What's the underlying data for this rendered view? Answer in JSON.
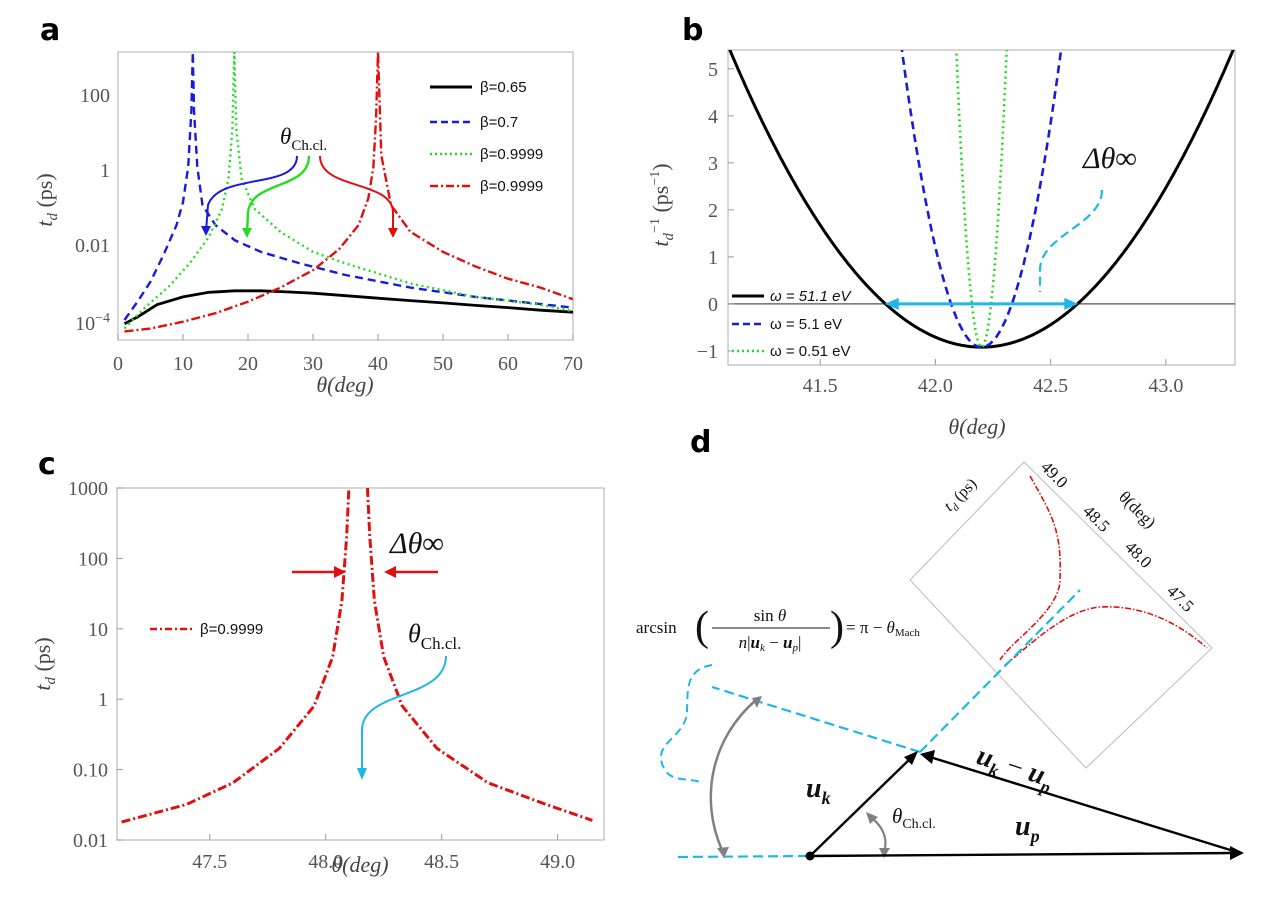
{
  "panels": {
    "a": {
      "letter": "a"
    },
    "b": {
      "letter": "b"
    },
    "c": {
      "letter": "c"
    },
    "d": {
      "letter": "d"
    }
  },
  "colors": {
    "black": "#000000",
    "blue": "#1a1adb",
    "green": "#22dd22",
    "red": "#e01010",
    "cyan": "#1fb6e8",
    "gray": "#808080"
  },
  "chart_data": [
    {
      "id": "a",
      "type": "line",
      "xlabel": "θ(deg)",
      "ylabel": "t_d (ps)",
      "yscale": "log",
      "xlim": [
        0,
        70
      ],
      "ylim": [
        3e-05,
        1000
      ],
      "xticks": [
        "0",
        "10",
        "20",
        "30",
        "40",
        "50",
        "60",
        "70"
      ],
      "yticks": [
        "10^-4",
        "0.01",
        "1",
        "100"
      ],
      "series": [
        {
          "name": "β=0.65",
          "style": "solid",
          "color": "#000000",
          "x": [
            1,
            3,
            6,
            10,
            14,
            18,
            22,
            26,
            30,
            35,
            40,
            45,
            50,
            55,
            60,
            65,
            70
          ],
          "y": [
            8e-05,
            0.00012,
            0.00025,
            0.0004,
            0.00053,
            0.00058,
            0.00058,
            0.00054,
            0.0005,
            0.00043,
            0.00037,
            0.00032,
            0.00028,
            0.00024,
            0.00021,
            0.00018,
            0.00016
          ]
        },
        {
          "name": "β=0.7",
          "style": "dashed",
          "color": "#1a1adb",
          "x": [
            1,
            3,
            5,
            7,
            9,
            10,
            10.8,
            11.3,
            11.5,
            11.7,
            12.2,
            13,
            15,
            18,
            22,
            28,
            35,
            45,
            55,
            65,
            70
          ],
          "y": [
            0.0001,
            0.0003,
            0.001,
            0.005,
            0.03,
            0.12,
            1,
            30,
            1000,
            30,
            1,
            0.1,
            0.03,
            0.012,
            0.006,
            0.003,
            0.0015,
            0.0007,
            0.0004,
            0.00026,
            0.00021
          ]
        },
        {
          "name": "β=0.9999",
          "style": "dotted",
          "color": "#22dd22",
          "x": [
            1,
            4,
            8,
            11,
            14,
            16,
            17,
            17.6,
            17.9,
            18.2,
            19,
            21,
            25,
            30,
            35,
            45,
            55,
            65,
            70
          ],
          "y": [
            6e-05,
            0.0002,
            0.0008,
            0.003,
            0.015,
            0.08,
            0.5,
            10,
            1000,
            10,
            0.5,
            0.08,
            0.02,
            0.006,
            0.003,
            0.0009,
            0.0004,
            0.00025,
            0.00017
          ]
        },
        {
          "name": "β=0.9999",
          "style": "dashdot",
          "color": "#e01010",
          "x": [
            1,
            5,
            10,
            15,
            20,
            25,
            30,
            34,
            37,
            38.5,
            39.3,
            39.7,
            40,
            40.5,
            42,
            45,
            50,
            55,
            60,
            65,
            70
          ],
          "y": [
            5e-05,
            6e-05,
            9e-05,
            0.00015,
            0.0003,
            0.0007,
            0.002,
            0.007,
            0.03,
            0.15,
            1,
            20,
            1000,
            2,
            0.1,
            0.02,
            0.006,
            0.0025,
            0.0012,
            0.0007,
            0.00035
          ]
        }
      ],
      "annotations": [
        {
          "text": "θCh.cl."
        }
      ]
    },
    {
      "id": "b",
      "type": "line",
      "xlabel": "θ(deg)",
      "ylabel": "t_d^-1 (ps^-1)",
      "xlim": [
        41.1,
        43.3
      ],
      "ylim": [
        -1.3,
        5.4
      ],
      "xticks": [
        "41.5",
        "42.0",
        "42.5",
        "43.0"
      ],
      "xtick_values": [
        41.5,
        42.0,
        42.5,
        43.0
      ],
      "yticks": [
        "-1",
        "0",
        "1",
        "2",
        "3",
        "4",
        "5"
      ],
      "ytick_values": [
        -1,
        0,
        1,
        2,
        3,
        4,
        5
      ],
      "series": [
        {
          "name": "ω = 51.1 eV",
          "style": "solid",
          "color": "#000000",
          "vertex": [
            42.2,
            -0.92
          ],
          "curvature": 5.3
        },
        {
          "name": "ω = 5.1 eV",
          "style": "dashed",
          "color": "#1a1adb",
          "vertex": [
            42.2,
            -0.92
          ],
          "curvature": 53
        },
        {
          "name": "ω = 0.51 eV",
          "style": "dotted",
          "color": "#22dd22",
          "vertex": [
            42.2,
            -0.92
          ],
          "curvature": 530
        }
      ],
      "annotations": [
        {
          "text": "Δθ∞",
          "from_x": 41.78,
          "to_x": 42.62,
          "y": 0
        }
      ]
    },
    {
      "id": "c",
      "type": "line",
      "xlabel": "θ(deg)",
      "ylabel": "t_d (ps)",
      "yscale": "log",
      "xlim": [
        47.1,
        49.2
      ],
      "ylim": [
        0.01,
        1000
      ],
      "xticks": [
        "47.5",
        "48.0",
        "48.5",
        "49.0"
      ],
      "xtick_values": [
        47.5,
        48.0,
        48.5,
        49.0
      ],
      "yticks": [
        "0.01",
        "0.10",
        "1",
        "10",
        "100",
        "1000"
      ],
      "ytick_values": [
        0.01,
        0.1,
        1,
        10,
        100,
        1000
      ],
      "series": [
        {
          "name": "β=0.9999",
          "style": "dashdot",
          "color": "#e01010",
          "left": {
            "x": [
              47.12,
              47.4,
              47.6,
              47.8,
              47.95,
              48.03,
              48.07,
              48.09,
              48.1
            ],
            "y": [
              0.018,
              0.032,
              0.065,
              0.2,
              0.8,
              4,
              25,
              200,
              1000
            ]
          },
          "right": {
            "x": [
              48.18,
              48.19,
              48.21,
              48.25,
              48.33,
              48.48,
              48.7,
              48.95,
              49.15
            ],
            "y": [
              1000,
              200,
              25,
              4,
              0.8,
              0.2,
              0.065,
              0.032,
              0.019
            ]
          }
        }
      ],
      "annotations": [
        {
          "text": "Δθ∞"
        },
        {
          "text": "θCh.cl."
        }
      ]
    },
    {
      "id": "d",
      "type": "other",
      "vectors": [
        {
          "label": "u_k"
        },
        {
          "label": "u_k − u_p"
        },
        {
          "label": "u_p"
        }
      ],
      "angle_label": "θCh.cl.",
      "formula_lhs": "arcsin",
      "formula_num": "sin θ",
      "formula_den": "n|u_k − u_p|",
      "formula_rhs": "= π − θ_Mach",
      "inset": {
        "ylabel": "t_d (ps)",
        "xlabel": "θ(deg)",
        "xticks": [
          "49.0",
          "48.5",
          "48.0",
          "47.5"
        ]
      }
    }
  ]
}
